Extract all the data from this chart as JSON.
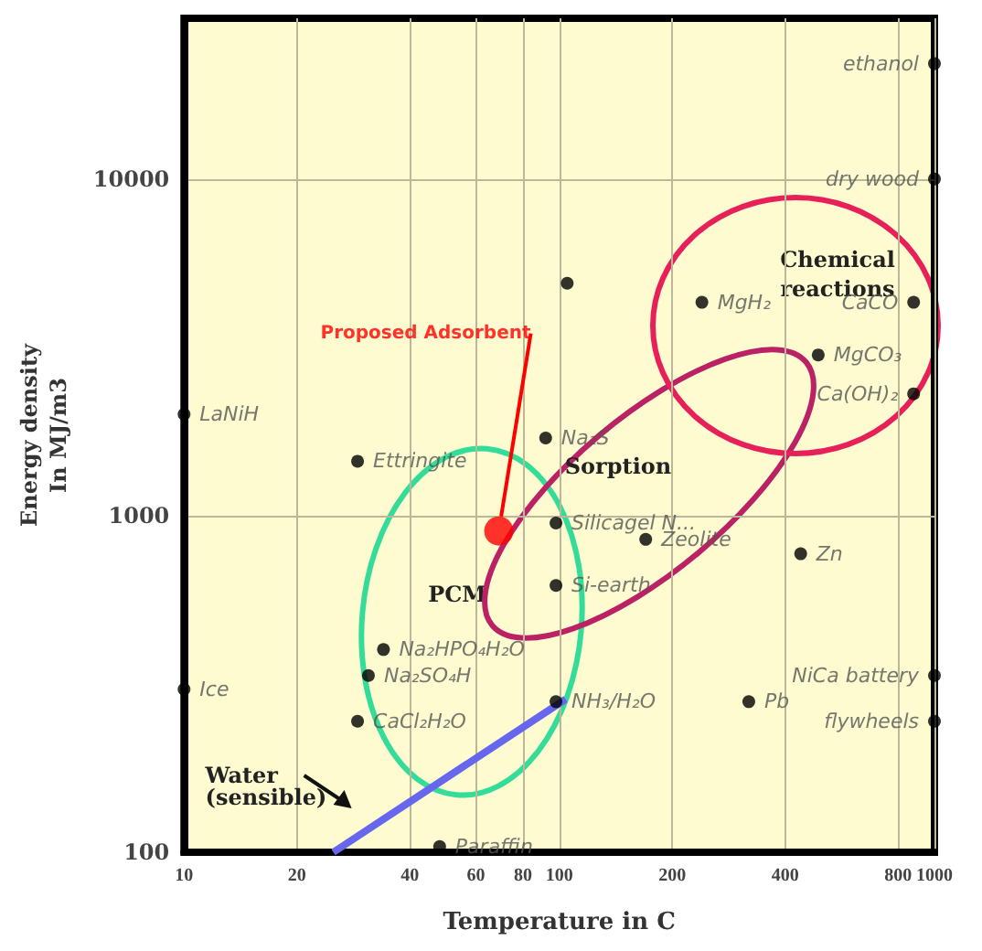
{
  "chart_data": {
    "type": "scatter",
    "xlabel": "Temperature in C",
    "ylabel": "Energy density In MJ/m3",
    "log": "xy",
    "grid": true,
    "legend": false,
    "marker": "circle",
    "xlim": [
      10,
      1000
    ],
    "xticks": [
      10,
      20,
      40,
      60,
      80,
      100,
      200,
      400,
      800,
      1000
    ],
    "ylim": [
      100,
      30000
    ],
    "yticks": [
      100,
      1000,
      10000
    ],
    "series": [
      {
        "name": "ethanol",
        "color": "#000000",
        "x": [
          1000
        ],
        "values": [
          22000
        ]
      },
      {
        "name": "dry wood",
        "color": "#000000",
        "x": [
          1000
        ],
        "values": [
          10000
        ]
      },
      {
        "color": "#000000",
        "x": [
          105
        ],
        "values": [
          4900
        ]
      },
      {
        "name": "MgH₂",
        "color": "#000000",
        "x": [
          240
        ],
        "values": [
          4300
        ]
      },
      {
        "name": "CaCO",
        "color": "#000000",
        "x": [
          880
        ],
        "values": [
          4300
        ]
      },
      {
        "name": "MgCO₃",
        "color": "#000000",
        "x": [
          490
        ],
        "values": [
          3000
        ]
      },
      {
        "name": "Ca(OH)₂",
        "color": "#000000",
        "x": [
          880
        ],
        "values": [
          2300
        ]
      },
      {
        "name": "LaNiH",
        "color": "#000000",
        "x": [
          10
        ],
        "values": [
          2000
        ]
      },
      {
        "name": "Ettringite",
        "color": "#000000",
        "x": [
          29
        ],
        "values": [
          1450
        ]
      },
      {
        "name": "Na₂S",
        "color": "#000000",
        "x": [
          92
        ],
        "values": [
          1700
        ]
      },
      {
        "name": "Silicagel N...",
        "color": "#000000",
        "x": [
          98
        ],
        "values": [
          950
        ]
      },
      {
        "name": "Zeolite",
        "color": "#000000",
        "x": [
          170
        ],
        "values": [
          850
        ]
      },
      {
        "name": "Zn",
        "color": "#000000",
        "x": [
          440
        ],
        "values": [
          770
        ]
      },
      {
        "name": "Si-earth",
        "color": "#000000",
        "x": [
          98
        ],
        "values": [
          620
        ]
      },
      {
        "name": "Na₂HPO₄H₂O",
        "color": "#000000",
        "x": [
          34
        ],
        "values": [
          400
        ]
      },
      {
        "name": "Na₂SO₄H",
        "color": "#000000",
        "x": [
          31
        ],
        "values": [
          335
        ]
      },
      {
        "name": "Ice",
        "color": "#000000",
        "x": [
          10
        ],
        "values": [
          305
        ]
      },
      {
        "name": "CaCl₂H₂O",
        "color": "#000000",
        "x": [
          29
        ],
        "values": [
          245
        ]
      },
      {
        "name": "NH₃/H₂O",
        "color": "#000000",
        "x": [
          98
        ],
        "values": [
          280
        ]
      },
      {
        "name": "Pb",
        "color": "#000000",
        "x": [
          320
        ],
        "values": [
          280
        ]
      },
      {
        "name": "NiCa battery",
        "color": "#000000",
        "x": [
          1000
        ],
        "values": [
          335
        ]
      },
      {
        "name": "flywheels",
        "color": "#000000",
        "x": [
          1000
        ],
        "values": [
          245
        ]
      },
      {
        "name": "Paraffin",
        "color": "#000000",
        "x": [
          48
        ],
        "values": [
          104
        ]
      },
      {
        "name": "Proposed Adsorbent",
        "color": "#ff0000",
        "x": [
          69
        ],
        "values": [
          900
        ]
      },
      {
        "name": "Water (sensible)",
        "type": "line",
        "color": "#6666ee",
        "marker": "none",
        "x": [
          25,
          104
        ],
        "values": [
          100,
          285
        ]
      }
    ],
    "annotations": [
      "PCM",
      "Sorption",
      "Chemical reactions"
    ]
  }
}
